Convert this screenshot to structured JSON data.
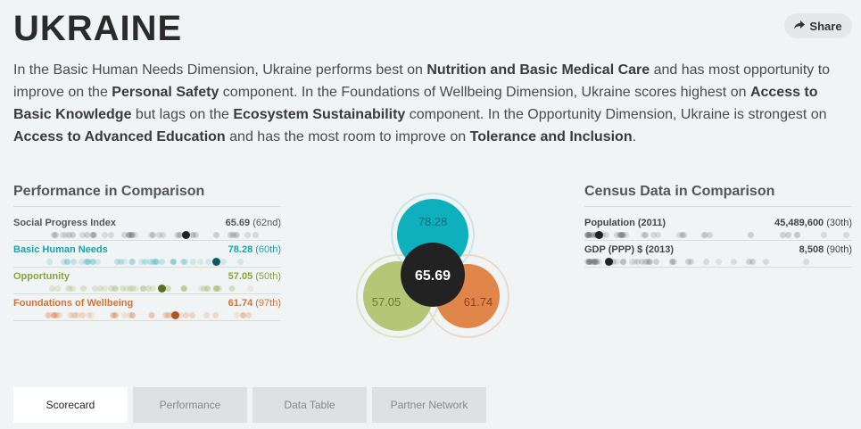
{
  "header": {
    "title": "UKRAINE",
    "share_label": "Share",
    "share_icon": "share-arrow-icon"
  },
  "summary": {
    "p1": "In the Basic Human Needs Dimension, Ukraine performs best on ",
    "b1": "Nutrition and Basic Medical Care",
    "p2": " and has most opportunity to improve on the ",
    "b2": "Personal Safety",
    "p3": " component. In the Foundations of Wellbeing Dimension, Ukraine scores highest on ",
    "b3": "Access to Basic Knowledge",
    "p4": " but lags on the ",
    "b4": "Ecosystem Sustainability",
    "p5": " component. In the Opportunity Dimension, Ukraine is strongest on ",
    "b5": "Access to Advanced Education",
    "p6": " and has the most room to improve on ",
    "b6": "Tolerance and Inclusion",
    "p7": "."
  },
  "performance": {
    "title": "Performance in Comparison",
    "rows": [
      {
        "label": "Social Progress Index",
        "value": "65.69",
        "rank": "(62nd)",
        "color": "#555555",
        "marker": "#222222",
        "fraction": 0.65
      },
      {
        "label": "Basic Human Needs",
        "value": "78.28",
        "rank": "(60th)",
        "color": "#16a3b1",
        "marker": "#0b5961",
        "fraction": 0.77
      },
      {
        "label": "Opportunity",
        "value": "57.05",
        "rank": "(50th)",
        "color": "#8aa23a",
        "marker": "#5a6e25",
        "fraction": 0.56
      },
      {
        "label": "Foundations of Wellbeing",
        "value": "61.74",
        "rank": "(97th)",
        "color": "#d8702f",
        "marker": "#b05522",
        "fraction": 0.61
      }
    ]
  },
  "venn": {
    "center": "65.69",
    "top": "78.28",
    "left": "57.05",
    "right": "61.74",
    "colors": {
      "top": "#0eb0be",
      "left": "#b6c576",
      "right": "#e0864a",
      "center": "#222222"
    }
  },
  "census": {
    "title": "Census Data in Comparison",
    "rows": [
      {
        "label": "Population (2011)",
        "value": "45,489,600",
        "rank": "(30th)",
        "fraction": 0.04
      },
      {
        "label": "GDP (PPP) $ (2013)",
        "value": "8,508",
        "rank": "(90th)",
        "fraction": 0.08
      }
    ]
  },
  "tabs": [
    "Scorecard",
    "Performance",
    "Data Table",
    "Partner Network"
  ]
}
